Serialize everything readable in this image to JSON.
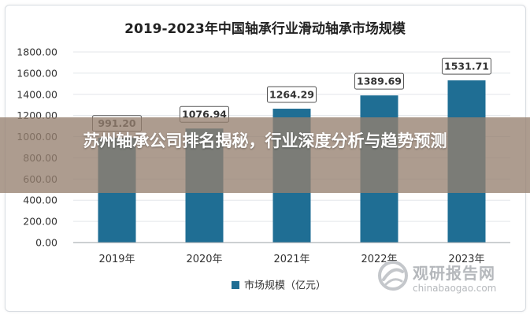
{
  "chart_data": {
    "type": "bar",
    "title": "2019-2023年中国轴承行业滑动轴承市场规模",
    "categories": [
      "2019年",
      "2020年",
      "2021年",
      "2022年",
      "2023年"
    ],
    "series": [
      {
        "name": "市场规模（亿元）",
        "values": [
          991.2,
          1076.94,
          1264.29,
          1389.69,
          1531.71
        ],
        "labels": [
          "991.20",
          "1076.94",
          "1264.29",
          "1389.69",
          "1531.71"
        ],
        "color": "#1f6e94"
      }
    ],
    "yticks": [
      "0.00",
      "200.00",
      "400.00",
      "600.00",
      "800.00",
      "1000.00",
      "1200.00",
      "1400.00",
      "1600.00",
      "1800.00"
    ],
    "ylim": [
      0,
      1800
    ],
    "xlabel": "",
    "ylabel": "",
    "grid": true,
    "legend_position": "bottom-center"
  },
  "overlay": {
    "headline": "苏州轴承公司排名揭秘，行业深度分析与趋势预测"
  },
  "watermark": {
    "name": "观研报告网",
    "url": "chinabaogao.com"
  },
  "colors": {
    "bar": "#1f6e94",
    "grid": "#e3e6ea",
    "axis": "#9aa0a6",
    "tick_text": "#333333",
    "banner": "#968070"
  }
}
